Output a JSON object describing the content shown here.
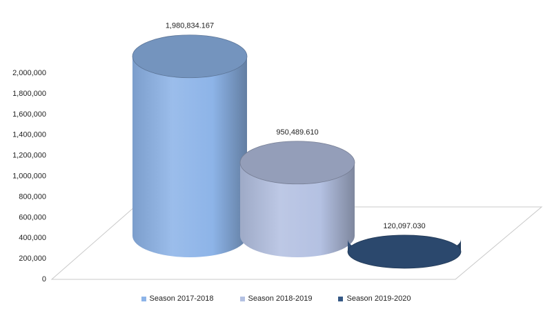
{
  "chart_data": {
    "type": "bar",
    "style": "3d-cylinder",
    "categories": [
      "Season 2017-2018",
      "Season 2018-2019",
      "Season 2019-2020"
    ],
    "values": [
      1980834.167,
      950489.61,
      120097.03
    ],
    "data_labels": [
      "1,980,834.167",
      "950,489.610",
      "120,097.030"
    ],
    "colors": [
      "#8db4e8",
      "#b4c1e2",
      "#355885"
    ],
    "title": "",
    "xlabel": "",
    "ylabel": "",
    "ylim": [
      0,
      2000000
    ],
    "yticks": [
      "0",
      "200,000",
      "400,000",
      "600,000",
      "800,000",
      "1,000,000",
      "1,200,000",
      "1,400,000",
      "1,600,000",
      "1,800,000",
      "2,000,000"
    ],
    "grid": false,
    "legend_position": "bottom"
  }
}
